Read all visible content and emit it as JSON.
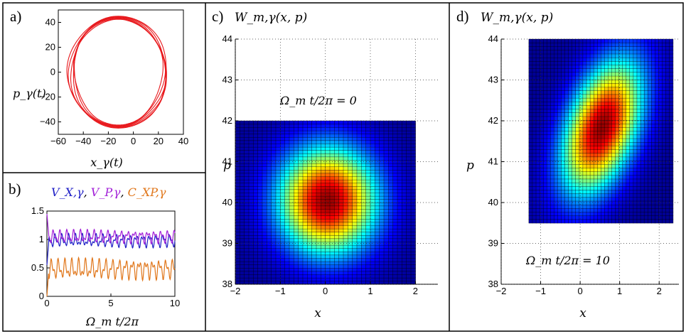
{
  "colors": {
    "ring": "#e8191d",
    "vx": "#1f1fc6",
    "vp": "#a21fd8",
    "cxp": "#e0761a"
  },
  "panels": {
    "a": {
      "label": "a)",
      "ylabel": "p_γ(t)",
      "xlabel": "x_γ(t)"
    },
    "b": {
      "label": "b)",
      "legend": [
        "V_X,γ",
        "V_P,γ",
        "C_XP,γ"
      ],
      "xlabel": "Ω_m t/2π"
    },
    "c": {
      "label": "c)",
      "title": "W_m,γ(x, p)",
      "annotation": "Ω_m t/2π = 0",
      "xlabel": "x",
      "ylabel": "p"
    },
    "d": {
      "label": "d)",
      "title": "W_m,γ(x, p)",
      "annotation": "Ω_m t/2π = 10",
      "xlabel": "x",
      "ylabel": "p"
    }
  },
  "chart_data": [
    {
      "id": "a",
      "type": "line",
      "title": "",
      "xlabel": "x_γ(t)",
      "ylabel": "p_γ(t)",
      "xlim": [
        -60,
        40
      ],
      "ylim": [
        -50,
        50
      ],
      "xticks": [
        -60,
        -40,
        -20,
        0,
        20,
        40
      ],
      "yticks": [
        -40,
        -20,
        0,
        20,
        40
      ],
      "series": [
        {
          "cx": -12,
          "cy": 0,
          "rx": 38,
          "ry": 44,
          "loops": 6,
          "spread": 2.5
        }
      ],
      "grid": false
    },
    {
      "id": "b",
      "type": "line",
      "xlabel": "Ω_m t/2π",
      "ylabel": "",
      "xlim": [
        0,
        10
      ],
      "ylim": [
        0,
        1.5
      ],
      "xticks": [
        0,
        5,
        10
      ],
      "yticks": [
        0,
        0.5,
        1,
        1.5
      ],
      "series": [
        {
          "name": "V_X,γ",
          "mean": 0.98,
          "amp": 0.13,
          "start": 0.55
        },
        {
          "name": "V_P,γ",
          "mean": 1.05,
          "amp": 0.13,
          "start": 1.45
        },
        {
          "name": "C_XP,γ",
          "mean": 0.48,
          "amp": 0.2,
          "start": 0.0
        }
      ],
      "grid": false
    },
    {
      "id": "c",
      "type": "heatmap",
      "title": "W_m,γ(x, p)",
      "xlabel": "x",
      "ylabel": "p",
      "xlim": [
        -2,
        2.5
      ],
      "ylim": [
        38,
        44
      ],
      "xticks": [
        -2,
        -1,
        0,
        1,
        2
      ],
      "yticks": [
        38,
        39,
        40,
        41,
        42,
        43,
        44
      ],
      "surface": {
        "x": [
          -2,
          2
        ],
        "p": [
          38,
          42
        ],
        "x0": 0.05,
        "p0": 40.05,
        "sx": 0.75,
        "sp": 0.9,
        "tilt": 0
      },
      "annotation": "Ω_m t/2π = 0",
      "grid": true
    },
    {
      "id": "d",
      "type": "heatmap",
      "title": "W_m,γ(x, p)",
      "xlabel": "x",
      "ylabel": "p",
      "xlim": [
        -2,
        2.5
      ],
      "ylim": [
        38,
        44
      ],
      "xticks": [
        -2,
        -1,
        0,
        1,
        2
      ],
      "yticks": [
        38,
        39,
        40,
        41,
        42,
        43,
        44
      ],
      "surface": {
        "x": [
          -1.3,
          2.35
        ],
        "p": [
          39.5,
          44
        ],
        "x0": 0.55,
        "p0": 41.85,
        "sx": 0.65,
        "sp": 1.05,
        "tilt": 0.45
      },
      "annotation": "Ω_m t/2π = 10",
      "grid": true
    }
  ]
}
